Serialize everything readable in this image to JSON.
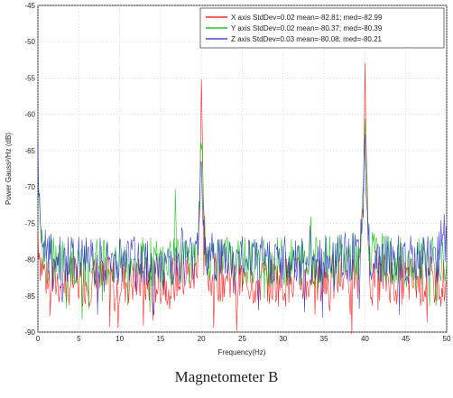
{
  "caption": "Magnetometer B",
  "chart_data": {
    "type": "line",
    "xlabel": "Frequency(Hz)",
    "ylabel": "Power Gauss²/Hz (dB)",
    "xlim": [
      0,
      50
    ],
    "ylim": [
      -90,
      -45
    ],
    "xticks": [
      "0",
      "5",
      "10",
      "15",
      "20",
      "25",
      "30",
      "35",
      "40",
      "45",
      "50"
    ],
    "yticks": [
      "-45",
      "-50",
      "-55",
      "-60",
      "-65",
      "-70",
      "-75",
      "-80",
      "-85",
      "-90"
    ],
    "grid": true,
    "legend_position": "top-right",
    "series": [
      {
        "name": "X axis StdDev=0.02 mean=-82.81; med=-82.99",
        "color": "#ff0000",
        "x": [
          0,
          0.3,
          1,
          2,
          5,
          10,
          15,
          19.4,
          19.8,
          20,
          20.2,
          20.6,
          25,
          30,
          35,
          39.4,
          39.8,
          40,
          40.2,
          40.6,
          45,
          50
        ],
        "y": [
          -76,
          -80,
          -82.5,
          -83,
          -83,
          -83,
          -83,
          -82,
          -72,
          -55.5,
          -72,
          -82,
          -83,
          -83,
          -83,
          -82,
          -70,
          -53.5,
          -70,
          -82,
          -83,
          -83
        ]
      },
      {
        "name": "Y axis StdDev=0.02 mean=-80.37; med=-80.39",
        "color": "#00bb00",
        "x": [
          0,
          0.3,
          1,
          2,
          5,
          10,
          15,
          16.6,
          16.8,
          17,
          19.4,
          19.8,
          20,
          20.2,
          20.6,
          25,
          30,
          33.1,
          33.3,
          33.5,
          35,
          39.4,
          39.8,
          40,
          40.2,
          40.6,
          45,
          50
        ],
        "y": [
          -70,
          -77,
          -80,
          -80.3,
          -80.4,
          -80.4,
          -80.4,
          -80.4,
          -73.5,
          -80.4,
          -79.5,
          -72,
          -62,
          -72,
          -79.5,
          -80.4,
          -80.4,
          -80.4,
          -74,
          -80.4,
          -80.4,
          -79.5,
          -71,
          -60,
          -71,
          -79.5,
          -80.4,
          -80.4
        ]
      },
      {
        "name": "Z axis StdDev=0.03 mean=-80.08; med=-80.21",
        "color": "#2222cc",
        "x": [
          0,
          0.3,
          1,
          2,
          5,
          10,
          15,
          17.5,
          17.7,
          17.9,
          19.4,
          19.8,
          20,
          20.2,
          20.6,
          25,
          30,
          33.1,
          33.3,
          33.5,
          35,
          39.4,
          39.8,
          40,
          40.2,
          40.6,
          45,
          49,
          49.5,
          50
        ],
        "y": [
          -66.5,
          -75,
          -79.5,
          -80,
          -80.1,
          -80.1,
          -80.1,
          -80.1,
          -76,
          -80.1,
          -79.5,
          -73,
          -64,
          -73,
          -79.5,
          -80.1,
          -80.1,
          -80.1,
          -75,
          -80.1,
          -80.1,
          -79.5,
          -73,
          -63,
          -73,
          -79.5,
          -80.1,
          -80.1,
          -73.5,
          -80
        ]
      }
    ]
  }
}
